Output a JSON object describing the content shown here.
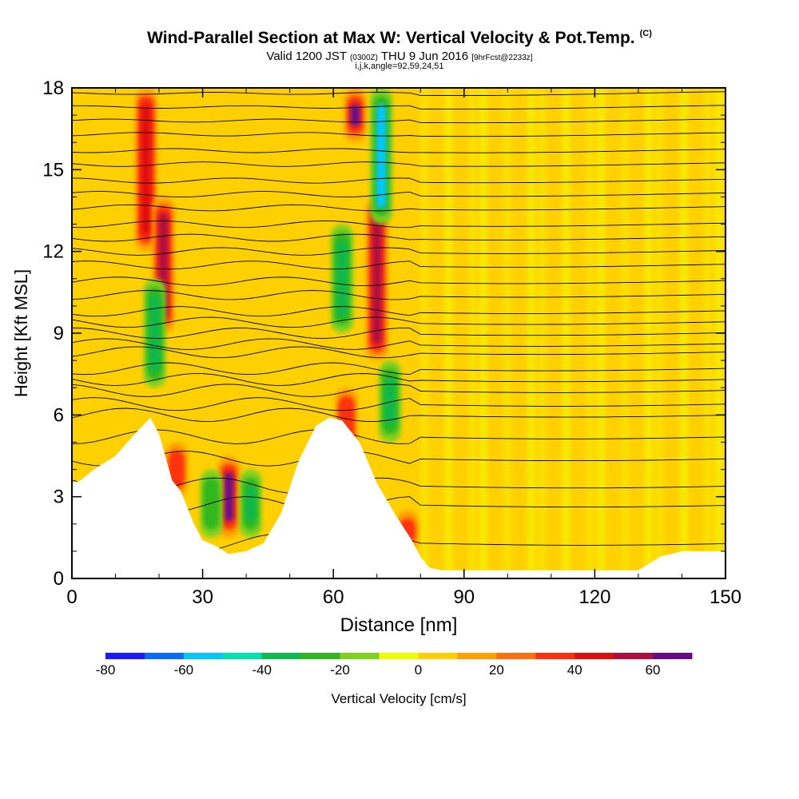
{
  "title": {
    "main": "Wind-Parallel Section at Max W: Vertical Velocity & Pot.Temp.",
    "copyright": "(C)",
    "valid_a": "Valid 1200 JST",
    "valid_b": "(0300Z)",
    "valid_c": "THU 9 Jun 2016",
    "valid_d": "[9hrFcst@2233z]",
    "indices": "i,j,k,angle=92,59,24,51"
  },
  "chart_data": {
    "type": "heatmap",
    "xlabel": "Distance [nm]",
    "ylabel": "Height [Kft MSL]",
    "xlim": [
      0,
      150
    ],
    "ylim": [
      0,
      18
    ],
    "xticks": [
      0,
      30,
      60,
      90,
      120,
      150
    ],
    "yticks": [
      0,
      3,
      6,
      9,
      12,
      15,
      18
    ],
    "colorbar": {
      "label": "Vertical Velocity [cm/s]",
      "ticks": [
        -80,
        -60,
        -40,
        -20,
        0,
        20,
        40,
        60
      ],
      "bins": [
        -80,
        -70,
        -60,
        -50,
        -40,
        -30,
        -20,
        -10,
        0,
        10,
        20,
        30,
        40,
        50,
        60,
        70
      ],
      "colors": [
        "#1a1aff",
        "#0a6cff",
        "#00c8ff",
        "#00e0b0",
        "#10b850",
        "#30b81e",
        "#80d020",
        "#f0ff00",
        "#ffd000",
        "#ffa000",
        "#ff7010",
        "#ff3010",
        "#e01010",
        "#b01040",
        "#6a0a8a"
      ]
    },
    "terrain": [
      [
        0,
        3.5
      ],
      [
        2,
        3.6
      ],
      [
        5,
        4.0
      ],
      [
        10,
        4.5
      ],
      [
        15,
        5.4
      ],
      [
        18,
        5.9
      ],
      [
        20,
        5.3
      ],
      [
        23,
        3.6
      ],
      [
        25,
        3.2
      ],
      [
        28,
        2.0
      ],
      [
        30,
        1.4
      ],
      [
        33,
        1.2
      ],
      [
        36,
        0.9
      ],
      [
        40,
        1.0
      ],
      [
        44,
        1.3
      ],
      [
        48,
        2.4
      ],
      [
        52,
        4.3
      ],
      [
        56,
        5.6
      ],
      [
        59,
        5.9
      ],
      [
        62,
        5.8
      ],
      [
        66,
        5.0
      ],
      [
        70,
        3.5
      ],
      [
        74,
        2.4
      ],
      [
        78,
        1.4
      ],
      [
        80,
        0.8
      ],
      [
        82,
        0.4
      ],
      [
        85,
        0.3
      ],
      [
        100,
        0.3
      ],
      [
        130,
        0.3
      ],
      [
        135,
        0.8
      ],
      [
        140,
        1.0
      ],
      [
        150,
        1.0
      ]
    ],
    "updrafts": [
      {
        "x": 17,
        "z0": 12,
        "z1": 18,
        "w": 45
      },
      {
        "x": 21,
        "z0": 9,
        "z1": 14,
        "w": 50
      },
      {
        "x": 24,
        "z0": 3,
        "z1": 5,
        "w": 35
      },
      {
        "x": 36,
        "z0": 1.5,
        "z1": 4.5,
        "w": 60
      },
      {
        "x": 63,
        "z0": 4,
        "z1": 7,
        "w": 30
      },
      {
        "x": 65,
        "z0": 16,
        "z1": 18,
        "w": 60
      },
      {
        "x": 70,
        "z0": 8,
        "z1": 14,
        "w": 50
      },
      {
        "x": 77,
        "z0": 1,
        "z1": 2.5,
        "w": 30
      }
    ],
    "downdrafts": [
      {
        "x": 19,
        "z0": 7,
        "z1": 11,
        "w": -35
      },
      {
        "x": 32,
        "z0": 1.5,
        "z1": 4,
        "w": -30
      },
      {
        "x": 41,
        "z0": 1.5,
        "z1": 4,
        "w": -35
      },
      {
        "x": 62,
        "z0": 9,
        "z1": 13,
        "w": -40
      },
      {
        "x": 71,
        "z0": 13,
        "z1": 18,
        "w": -60
      },
      {
        "x": 73,
        "z0": 5,
        "z1": 8,
        "w": -35
      }
    ],
    "isentropes_kft": [
      1.3,
      2.7,
      3.4,
      4.4,
      5.2,
      6.0,
      6.4,
      6.9,
      7.3,
      7.7,
      8.3,
      8.6,
      9.0,
      9.4,
      9.8,
      10.4,
      10.9,
      11.5,
      12.0,
      12.5,
      13.0,
      13.6,
      14.1,
      14.6,
      15.2,
      15.7,
      16.3,
      16.8,
      17.3,
      17.8
    ]
  }
}
